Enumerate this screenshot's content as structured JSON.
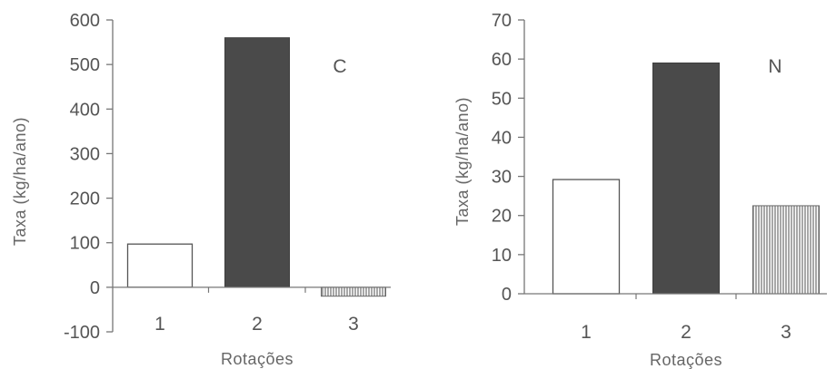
{
  "chart_data": [
    {
      "type": "bar",
      "panel_label": "C",
      "categories": [
        "1",
        "2",
        "3"
      ],
      "values": [
        97,
        560,
        -20
      ],
      "ylabel": "Taxa (kg/ha/ano)",
      "xlabel": "Rotações",
      "ylim": [
        -100,
        600
      ],
      "yticks": [
        -100,
        0,
        100,
        200,
        300,
        400,
        500,
        600
      ],
      "grid": false,
      "bar_styles": [
        "open",
        "dark",
        "hatched"
      ]
    },
    {
      "type": "bar",
      "panel_label": "N",
      "categories": [
        "1",
        "2",
        "3"
      ],
      "values": [
        29.2,
        59,
        22.5
      ],
      "ylabel": "Taxa (kg/ha/ano)",
      "xlabel": "Rotações",
      "ylim": [
        0,
        70
      ],
      "yticks": [
        0,
        10,
        20,
        30,
        40,
        50,
        60,
        70
      ],
      "grid": false,
      "bar_styles": [
        "open",
        "dark",
        "hatched"
      ]
    }
  ]
}
